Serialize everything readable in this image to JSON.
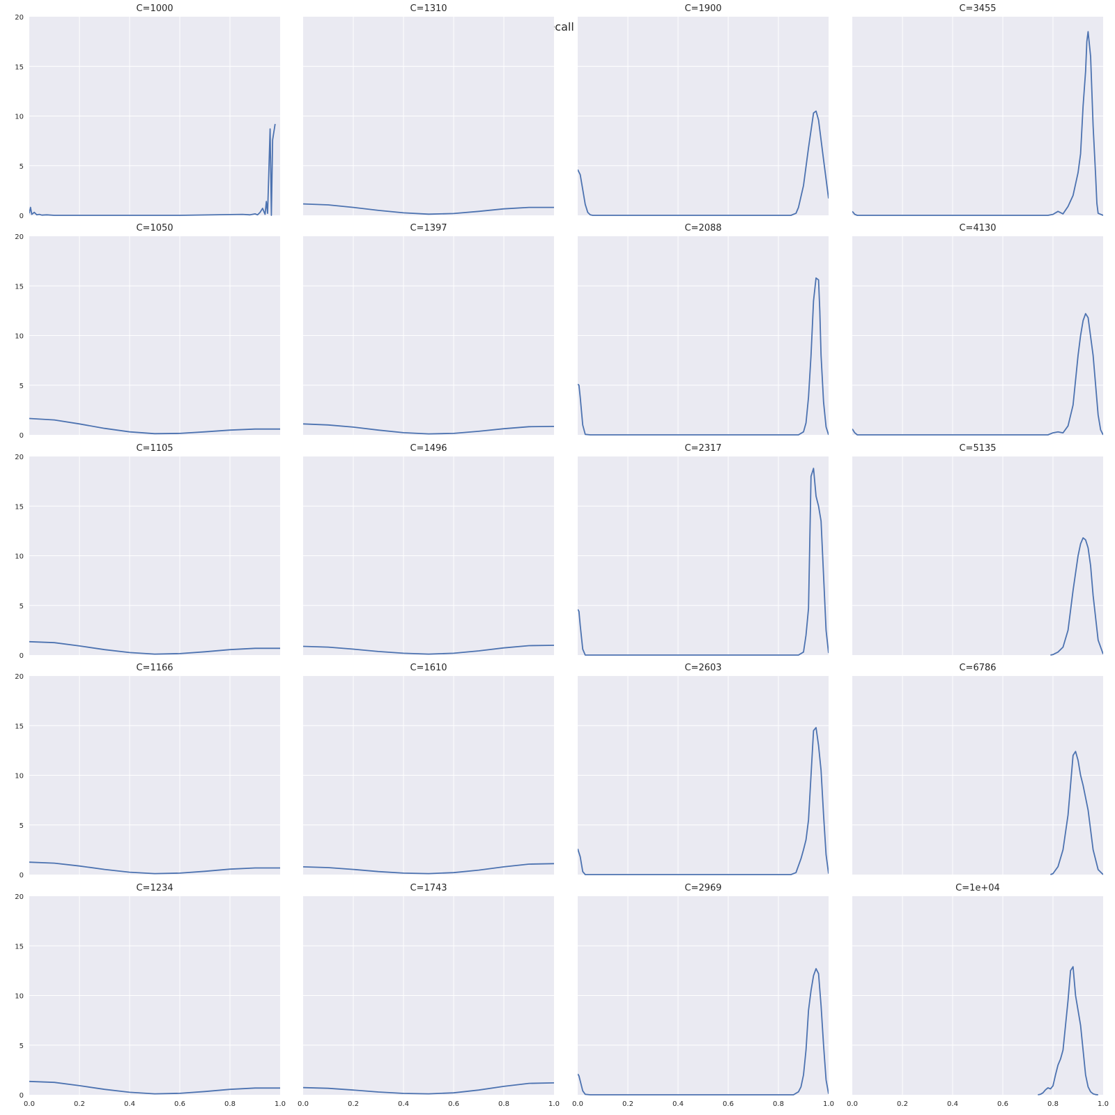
{
  "suptitle": "recall",
  "chart_data": {
    "type": "line",
    "title": "recall",
    "layout": "5 rows x 4 columns, shared axes",
    "xlim": [
      0,
      1
    ],
    "ylim": [
      0,
      20
    ],
    "xticks": [
      "0.0",
      "0.2",
      "0.4",
      "0.6",
      "0.8",
      "1.0"
    ],
    "yticks": [
      "0",
      "5",
      "10",
      "15",
      "20"
    ],
    "grid": true,
    "series_color": "#4c72b0",
    "panel_bg": "#eaeaf2",
    "panels": [
      {
        "title": "C=1000",
        "x": [
          0,
          0.005,
          0.01,
          0.02,
          0.03,
          0.04,
          0.05,
          0.07,
          0.1,
          0.3,
          0.6,
          0.85,
          0.88,
          0.9,
          0.91,
          0.92,
          0.93,
          0.94,
          0.945,
          0.95,
          0.96,
          0.965,
          0.97,
          0.98
        ],
        "y": [
          0.2,
          0.8,
          0.1,
          0.3,
          0.05,
          0.1,
          0.02,
          0.05,
          0,
          0,
          0,
          0.1,
          0.05,
          0.15,
          0.05,
          0.3,
          0.7,
          0.1,
          1.4,
          0.2,
          8.7,
          0,
          7.6,
          9.2
        ]
      },
      {
        "title": "C=1310",
        "x": [
          0,
          0.1,
          0.2,
          0.3,
          0.4,
          0.5,
          0.6,
          0.7,
          0.8,
          0.9,
          1.0
        ],
        "y": [
          1.15,
          1.05,
          0.8,
          0.5,
          0.25,
          0.12,
          0.18,
          0.4,
          0.65,
          0.8,
          0.8
        ]
      },
      {
        "title": "C=1900",
        "x": [
          0,
          0.01,
          0.02,
          0.03,
          0.04,
          0.05,
          0.06,
          0.1,
          0.5,
          0.85,
          0.87,
          0.88,
          0.9,
          0.92,
          0.94,
          0.95,
          0.96,
          0.98,
          1.0
        ],
        "y": [
          4.6,
          4.1,
          2.6,
          1.1,
          0.3,
          0.05,
          0,
          0,
          0,
          0,
          0.2,
          0.8,
          3.0,
          6.8,
          10.3,
          10.5,
          9.6,
          5.6,
          1.7
        ]
      },
      {
        "title": "C=3455",
        "x": [
          0,
          0.01,
          0.02,
          0.3,
          0.78,
          0.8,
          0.82,
          0.84,
          0.86,
          0.88,
          0.9,
          0.91,
          0.92,
          0.93,
          0.935,
          0.94,
          0.95,
          0.96,
          0.97,
          0.975,
          0.98,
          1.0
        ],
        "y": [
          0.4,
          0.1,
          0,
          0,
          0,
          0.1,
          0.4,
          0.15,
          0.9,
          2.0,
          4.3,
          6.2,
          11.0,
          14.5,
          17.5,
          18.5,
          16.0,
          9.0,
          4.0,
          1.2,
          0.2,
          0
        ]
      },
      {
        "title": "C=1050",
        "x": [
          0,
          0.1,
          0.2,
          0.3,
          0.4,
          0.5,
          0.6,
          0.7,
          0.8,
          0.9,
          1.0
        ],
        "y": [
          1.65,
          1.5,
          1.1,
          0.65,
          0.3,
          0.12,
          0.15,
          0.3,
          0.48,
          0.58,
          0.58
        ]
      },
      {
        "title": "C=1397",
        "x": [
          0,
          0.1,
          0.2,
          0.3,
          0.4,
          0.5,
          0.6,
          0.7,
          0.8,
          0.9,
          1.0
        ],
        "y": [
          1.1,
          1.0,
          0.78,
          0.48,
          0.22,
          0.1,
          0.15,
          0.36,
          0.62,
          0.82,
          0.85
        ]
      },
      {
        "title": "C=2088",
        "x": [
          0,
          0.005,
          0.01,
          0.02,
          0.03,
          0.05,
          0.5,
          0.88,
          0.9,
          0.91,
          0.92,
          0.93,
          0.94,
          0.95,
          0.96,
          0.965,
          0.97,
          0.98,
          0.99,
          1.0
        ],
        "y": [
          5.1,
          5.0,
          3.8,
          1.0,
          0.05,
          0,
          0,
          0,
          0.3,
          1.2,
          3.8,
          8.0,
          13.5,
          15.8,
          15.6,
          12.5,
          8.0,
          3.3,
          0.8,
          0
        ]
      },
      {
        "title": "C=4130",
        "x": [
          0,
          0.01,
          0.02,
          0.3,
          0.78,
          0.8,
          0.82,
          0.84,
          0.86,
          0.88,
          0.9,
          0.91,
          0.92,
          0.93,
          0.94,
          0.96,
          0.98,
          0.99,
          1.0
        ],
        "y": [
          0.6,
          0.2,
          0,
          0,
          0,
          0.2,
          0.3,
          0.2,
          0.9,
          3.0,
          8.0,
          10.0,
          11.5,
          12.2,
          11.8,
          8.0,
          2.0,
          0.5,
          0
        ]
      },
      {
        "title": "C=1105",
        "x": [
          0,
          0.1,
          0.2,
          0.3,
          0.4,
          0.5,
          0.6,
          0.7,
          0.8,
          0.9,
          1.0
        ],
        "y": [
          1.35,
          1.25,
          0.92,
          0.55,
          0.25,
          0.1,
          0.15,
          0.33,
          0.55,
          0.68,
          0.68
        ]
      },
      {
        "title": "C=1496",
        "x": [
          0,
          0.1,
          0.2,
          0.3,
          0.4,
          0.5,
          0.6,
          0.7,
          0.8,
          0.9,
          1.0
        ],
        "y": [
          0.88,
          0.8,
          0.6,
          0.36,
          0.18,
          0.1,
          0.18,
          0.42,
          0.72,
          0.95,
          0.98
        ]
      },
      {
        "title": "C=2317",
        "x": [
          0,
          0.005,
          0.01,
          0.02,
          0.03,
          0.5,
          0.88,
          0.9,
          0.91,
          0.92,
          0.93,
          0.94,
          0.95,
          0.96,
          0.97,
          0.98,
          0.99,
          1.0
        ],
        "y": [
          4.6,
          4.4,
          3.0,
          0.6,
          0,
          0,
          0,
          0.3,
          2.0,
          4.7,
          18.0,
          18.8,
          16.0,
          15.0,
          13.5,
          8.0,
          2.5,
          0.2
        ]
      },
      {
        "title": "C=5135",
        "x": [
          0.79,
          0.8,
          0.82,
          0.84,
          0.86,
          0.88,
          0.9,
          0.91,
          0.92,
          0.93,
          0.94,
          0.95,
          0.96,
          0.98,
          1.0
        ],
        "y": [
          0,
          0.05,
          0.3,
          0.8,
          2.5,
          6.5,
          10.0,
          11.2,
          11.8,
          11.6,
          10.8,
          9.0,
          6.0,
          1.5,
          0.1
        ]
      },
      {
        "title": "C=1166",
        "x": [
          0,
          0.1,
          0.2,
          0.3,
          0.4,
          0.5,
          0.6,
          0.7,
          0.8,
          0.9,
          1.0
        ],
        "y": [
          1.25,
          1.15,
          0.86,
          0.52,
          0.24,
          0.1,
          0.15,
          0.33,
          0.55,
          0.67,
          0.67
        ]
      },
      {
        "title": "C=1610",
        "x": [
          0,
          0.1,
          0.2,
          0.3,
          0.4,
          0.5,
          0.6,
          0.7,
          0.8,
          0.9,
          1.0
        ],
        "y": [
          0.78,
          0.7,
          0.52,
          0.3,
          0.15,
          0.1,
          0.2,
          0.45,
          0.78,
          1.05,
          1.1
        ]
      },
      {
        "title": "C=2603",
        "x": [
          0,
          0.01,
          0.02,
          0.03,
          0.05,
          0.5,
          0.85,
          0.87,
          0.89,
          0.9,
          0.91,
          0.92,
          0.93,
          0.94,
          0.95,
          0.96,
          0.97,
          0.98,
          0.99,
          1.0
        ],
        "y": [
          2.6,
          1.8,
          0.3,
          0,
          0,
          0,
          0,
          0.2,
          1.6,
          2.5,
          3.5,
          5.5,
          10.0,
          14.5,
          14.8,
          13.0,
          10.5,
          6.0,
          2.0,
          0.1
        ]
      },
      {
        "title": "C=6786",
        "x": [
          0.79,
          0.8,
          0.82,
          0.84,
          0.86,
          0.87,
          0.88,
          0.89,
          0.9,
          0.91,
          0.92,
          0.94,
          0.96,
          0.98,
          1.0
        ],
        "y": [
          0,
          0.1,
          0.8,
          2.5,
          6.0,
          9.0,
          12.0,
          12.4,
          11.5,
          10.0,
          9.0,
          6.5,
          2.5,
          0.5,
          0
        ]
      },
      {
        "title": "C=1234",
        "x": [
          0,
          0.1,
          0.2,
          0.3,
          0.4,
          0.5,
          0.6,
          0.7,
          0.8,
          0.9,
          1.0
        ],
        "y": [
          1.35,
          1.25,
          0.92,
          0.55,
          0.25,
          0.1,
          0.15,
          0.33,
          0.55,
          0.68,
          0.68
        ]
      },
      {
        "title": "C=1743",
        "x": [
          0,
          0.1,
          0.2,
          0.3,
          0.4,
          0.5,
          0.6,
          0.7,
          0.8,
          0.9,
          1.0
        ],
        "y": [
          0.72,
          0.65,
          0.48,
          0.28,
          0.14,
          0.1,
          0.2,
          0.48,
          0.85,
          1.15,
          1.2
        ]
      },
      {
        "title": "C=2969",
        "x": [
          0,
          0.005,
          0.01,
          0.02,
          0.03,
          0.05,
          0.5,
          0.86,
          0.88,
          0.89,
          0.9,
          0.91,
          0.92,
          0.93,
          0.94,
          0.95,
          0.96,
          0.97,
          0.98,
          0.99,
          1.0
        ],
        "y": [
          2.1,
          1.9,
          1.4,
          0.4,
          0.05,
          0,
          0,
          0,
          0.3,
          0.8,
          2.0,
          4.5,
          8.5,
          10.5,
          12.0,
          12.7,
          12.2,
          9.0,
          5.0,
          1.5,
          0.1
        ]
      },
      {
        "title": "C=1e+04",
        "x": [
          0.74,
          0.75,
          0.76,
          0.77,
          0.78,
          0.79,
          0.8,
          0.81,
          0.82,
          0.83,
          0.84,
          0.85,
          0.86,
          0.87,
          0.88,
          0.89,
          0.9,
          0.91,
          0.92,
          0.93,
          0.94,
          0.95,
          0.96,
          0.97,
          0.98
        ],
        "y": [
          0,
          0.05,
          0.2,
          0.5,
          0.7,
          0.6,
          0.9,
          2.0,
          3.0,
          3.6,
          4.5,
          7.0,
          9.5,
          12.5,
          12.9,
          10.0,
          8.5,
          7.0,
          4.5,
          2.0,
          0.8,
          0.3,
          0.1,
          0.02,
          0
        ]
      }
    ]
  }
}
